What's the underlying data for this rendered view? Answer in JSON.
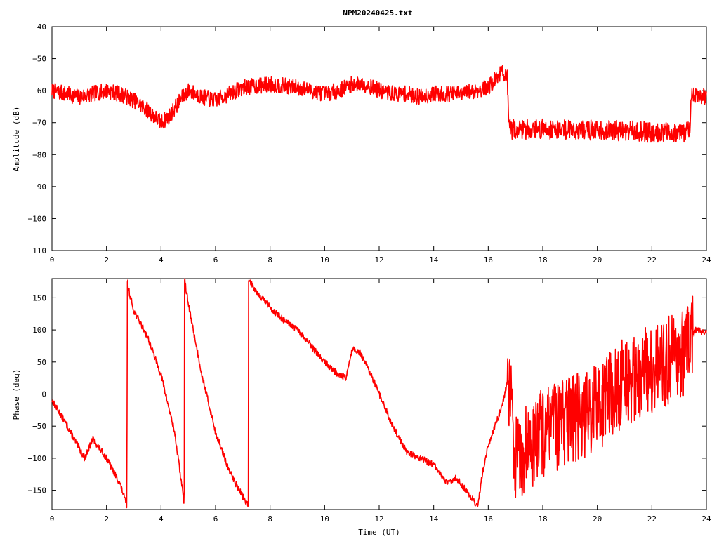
{
  "chart_data": [
    {
      "type": "line",
      "title": "NPM20240425.txt",
      "xlabel": "",
      "ylabel": "Amplitude (dB)",
      "xlim": [
        0,
        24
      ],
      "ylim": [
        -110,
        -40
      ],
      "x_ticks": [
        "0",
        "2",
        "4",
        "6",
        "8",
        "10",
        "12",
        "14",
        "16",
        "18",
        "20",
        "22",
        "24"
      ],
      "y_ticks": [
        "-110",
        "-100",
        "-90",
        "-80",
        "-70",
        "-60",
        "-50",
        "-40"
      ],
      "color": "#ff0000",
      "noise": 2.5,
      "series": [
        {
          "x": [
            0,
            0.5,
            1,
            1.5,
            2,
            2.5,
            3,
            3.5,
            4,
            4.3,
            4.7,
            5,
            5.5,
            6,
            6.5,
            7,
            7.5,
            8,
            8.5,
            9,
            9.5,
            10,
            10.5,
            11,
            11.5,
            12,
            12.5,
            13,
            13.5,
            14,
            14.5,
            15,
            15.5,
            16,
            16.5,
            16.7,
            16.75,
            17,
            18,
            19,
            20,
            21,
            22,
            23,
            23.4,
            23.45,
            24
          ],
          "y": [
            -60,
            -61,
            -62,
            -61,
            -60,
            -61,
            -63,
            -66,
            -70,
            -68,
            -63,
            -60,
            -62,
            -63,
            -61,
            -59,
            -58.5,
            -58,
            -58.5,
            -59,
            -60,
            -61,
            -60,
            -58,
            -58,
            -60,
            -61,
            -61,
            -62,
            -61,
            -61,
            -61,
            -60,
            -59,
            -54,
            -56,
            -72,
            -72,
            -72,
            -72,
            -72.5,
            -72.5,
            -73,
            -73,
            -73,
            -61,
            -62
          ]
        }
      ]
    },
    {
      "type": "line",
      "title": "",
      "xlabel": "Time (UT)",
      "ylabel": "Phase (deg)",
      "xlim": [
        0,
        24
      ],
      "ylim": [
        -180,
        180
      ],
      "x_ticks": [
        "0",
        "2",
        "4",
        "6",
        "8",
        "10",
        "12",
        "14",
        "16",
        "18",
        "20",
        "22",
        "24"
      ],
      "y_ticks": [
        "-150",
        "-100",
        "-50",
        "0",
        "50",
        "100",
        "150"
      ],
      "color": "#ff0000",
      "noise": 5,
      "series": [
        {
          "x": [
            0,
            0.5,
            1,
            1.2,
            1.5,
            2,
            2.5,
            2.75,
            2.76,
            2.8,
            3,
            3.5,
            4,
            4.5,
            4.85,
            4.86,
            5,
            5.5,
            6,
            6.5,
            7,
            7.2,
            7.21,
            7.5,
            8,
            8.5,
            9,
            9.5,
            10,
            10.5,
            10.8,
            11,
            11.3,
            11.8,
            12.5,
            13,
            13.5,
            14,
            14.5,
            14.8,
            15.2,
            15.6,
            15.7,
            15.8,
            16,
            16.5,
            16.7,
            16.8,
            17,
            18,
            19,
            20,
            21,
            22,
            23,
            23.4,
            23.6,
            24
          ],
          "y": [
            -10,
            -45,
            -85,
            -100,
            -70,
            -100,
            -140,
            -175,
            180,
            165,
            130,
            90,
            30,
            -60,
            -170,
            180,
            140,
            30,
            -60,
            -120,
            -160,
            -175,
            180,
            160,
            135,
            115,
            100,
            75,
            50,
            30,
            25,
            70,
            65,
            20,
            -50,
            -90,
            -100,
            -110,
            -140,
            -130,
            -150,
            -175,
            -150,
            -120,
            -80,
            -20,
            20,
            0,
            -100,
            -60,
            -40,
            -20,
            20,
            40,
            60,
            80,
            100,
            95
          ]
        }
      ]
    }
  ]
}
